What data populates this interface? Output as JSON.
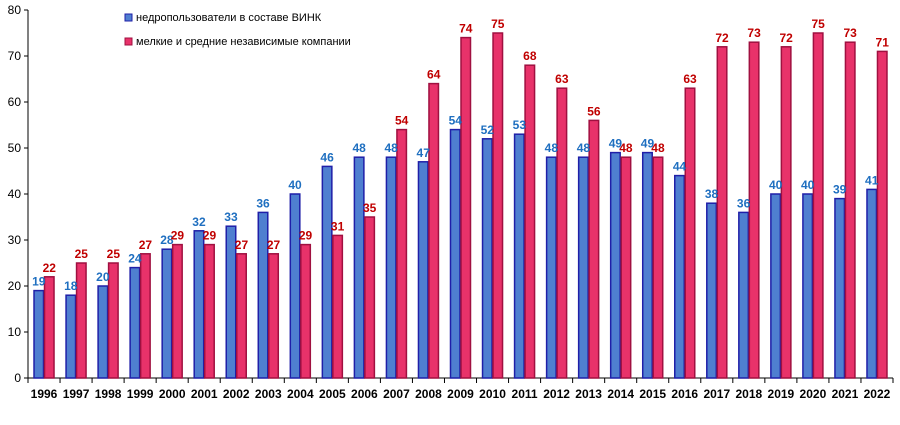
{
  "chart_data": {
    "type": "bar",
    "categories": [
      "1996",
      "1997",
      "1998",
      "1999",
      "2000",
      "2001",
      "2002",
      "2003",
      "2004",
      "2005",
      "2006",
      "2007",
      "2008",
      "2009",
      "2010",
      "2011",
      "2012",
      "2013",
      "2014",
      "2015",
      "2016",
      "2017",
      "2018",
      "2019",
      "2020",
      "2021",
      "2022"
    ],
    "series": [
      {
        "name": "недропользователи в составе ВИНК",
        "values": [
          19,
          18,
          20,
          24,
          28,
          32,
          33,
          36,
          40,
          46,
          48,
          48,
          47,
          54,
          52,
          53,
          48,
          48,
          49,
          49,
          44,
          38,
          36,
          40,
          40,
          39,
          41
        ],
        "color": "#4F7FD0",
        "edge_color": "#1F1FA8",
        "label_color": "#1F6FC0"
      },
      {
        "name": "мелкие и средние независимые компании",
        "values": [
          22,
          25,
          25,
          27,
          29,
          29,
          27,
          27,
          29,
          31,
          35,
          54,
          64,
          74,
          75,
          68,
          63,
          56,
          48,
          48,
          63,
          72,
          73,
          72,
          75,
          73,
          71
        ],
        "color": "#E8326A",
        "edge_color": "#A01040",
        "label_color": "#C00000"
      }
    ],
    "yticks": [
      0,
      10,
      20,
      30,
      40,
      50,
      60,
      70,
      80
    ],
    "ylim": [
      0,
      80
    ],
    "grid": false,
    "legend_position": "top-left-inside"
  }
}
